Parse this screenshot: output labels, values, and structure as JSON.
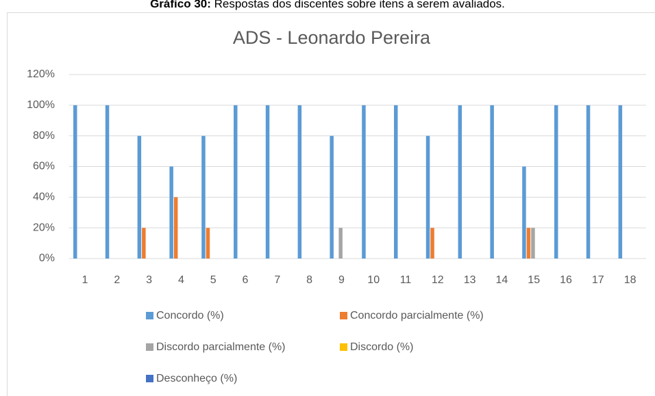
{
  "caption": {
    "label": "Gráfico 30:",
    "text": "Respostas dos discentes sobre itens a serem avaliados."
  },
  "chart_data": {
    "type": "bar",
    "title": "ADS - Leonardo Pereira",
    "categories": [
      "1",
      "2",
      "3",
      "4",
      "5",
      "6",
      "7",
      "8",
      "9",
      "10",
      "11",
      "12",
      "13",
      "14",
      "15",
      "16",
      "17",
      "18"
    ],
    "series": [
      {
        "name": "Concordo (%)",
        "color": "#5b9bd5",
        "values": [
          100,
          100,
          80,
          60,
          80,
          100,
          100,
          100,
          80,
          100,
          100,
          80,
          100,
          100,
          60,
          100,
          100,
          100
        ]
      },
      {
        "name": "Concordo parcialmente (%)",
        "color": "#ed7d31",
        "values": [
          0,
          0,
          20,
          40,
          20,
          0,
          0,
          0,
          0,
          0,
          0,
          20,
          0,
          0,
          20,
          0,
          0,
          0
        ]
      },
      {
        "name": "Discordo parcialmente (%)",
        "color": "#a5a5a5",
        "values": [
          0,
          0,
          0,
          0,
          0,
          0,
          0,
          0,
          20,
          0,
          0,
          0,
          0,
          0,
          20,
          0,
          0,
          0
        ]
      },
      {
        "name": "Discordo (%)",
        "color": "#ffc000",
        "values": [
          0,
          0,
          0,
          0,
          0,
          0,
          0,
          0,
          0,
          0,
          0,
          0,
          0,
          0,
          0,
          0,
          0,
          0
        ]
      },
      {
        "name": "Desconheço (%)",
        "color": "#4472c4",
        "values": [
          0,
          0,
          0,
          0,
          0,
          0,
          0,
          0,
          0,
          0,
          0,
          0,
          0,
          0,
          0,
          0,
          0,
          0
        ]
      }
    ],
    "ylim": [
      0,
      120
    ],
    "yticks": [
      {
        "value": 0,
        "label": "0%"
      },
      {
        "value": 20,
        "label": "20%"
      },
      {
        "value": 40,
        "label": "40%"
      },
      {
        "value": 60,
        "label": "60%"
      },
      {
        "value": 80,
        "label": "80%"
      },
      {
        "value": 100,
        "label": "100%"
      },
      {
        "value": 120,
        "label": "120%"
      }
    ],
    "grid": true,
    "legend": "bottom"
  }
}
